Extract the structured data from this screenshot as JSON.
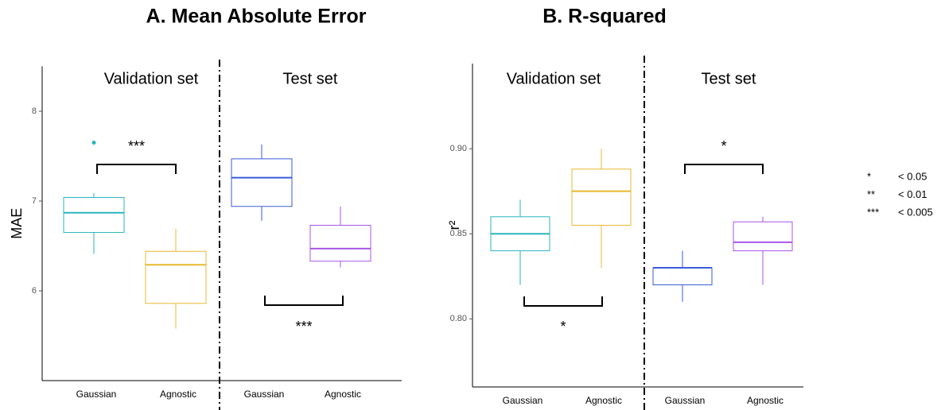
{
  "chart_data": [
    {
      "type": "box",
      "title": "A. Mean Absolute Error",
      "ylabel": "MAE",
      "panels": [
        "Validation set",
        "Test set"
      ],
      "categories": [
        "Gaussian",
        "Agnostic",
        "Gaussian",
        "Agnostic"
      ],
      "boxes": [
        {
          "color": "#2ab5be",
          "min": 6.41,
          "q1": 6.65,
          "median": 6.87,
          "q3": 7.04,
          "max": 7.09,
          "outliers": [
            7.65
          ]
        },
        {
          "color": "#e8b830",
          "min": 5.58,
          "q1": 5.86,
          "median": 6.29,
          "q3": 6.44,
          "max": 6.69,
          "outliers": []
        },
        {
          "color": "#3a5bd9",
          "min": 6.78,
          "q1": 6.94,
          "median": 7.26,
          "q3": 7.47,
          "max": 7.63,
          "outliers": []
        },
        {
          "color": "#a855e8",
          "min": 6.26,
          "q1": 6.33,
          "median": 6.47,
          "q3": 6.73,
          "max": 6.94,
          "outliers": []
        }
      ],
      "annotations": [
        "***",
        "***"
      ],
      "ylim": [
        5.0,
        8.5
      ],
      "yticks": [
        6,
        7,
        8
      ]
    },
    {
      "type": "box",
      "title": "B. R-squared",
      "ylabel": "r²",
      "panels": [
        "Validation set",
        "Test set"
      ],
      "categories": [
        "Gaussian",
        "Agnostic",
        "Gaussian",
        "Agnostic"
      ],
      "boxes": [
        {
          "color": "#2ab5be",
          "min": 0.82,
          "q1": 0.84,
          "median": 0.85,
          "q3": 0.86,
          "max": 0.87,
          "outliers": []
        },
        {
          "color": "#e8b830",
          "min": 0.83,
          "q1": 0.855,
          "median": 0.875,
          "q3": 0.888,
          "max": 0.9,
          "outliers": []
        },
        {
          "color": "#3a5bd9",
          "min": 0.81,
          "q1": 0.82,
          "median": 0.83,
          "q3": 0.83,
          "max": 0.84,
          "outliers": []
        },
        {
          "color": "#a855e8",
          "min": 0.82,
          "q1": 0.84,
          "median": 0.845,
          "q3": 0.857,
          "max": 0.86,
          "outliers": []
        }
      ],
      "annotations": [
        "*",
        "*"
      ],
      "ylim": [
        0.76,
        0.95
      ],
      "yticks": [
        {
          "value": 0.8,
          "label": "0.80"
        },
        0.85,
        {
          "value": 0.9,
          "label": "0.90"
        }
      ]
    }
  ],
  "significance_legend": [
    {
      "symbol": "*",
      "label": "< 0.05"
    },
    {
      "symbol": "**",
      "label": "< 0.01"
    },
    {
      "symbol": "***",
      "label": "< 0.005"
    }
  ]
}
